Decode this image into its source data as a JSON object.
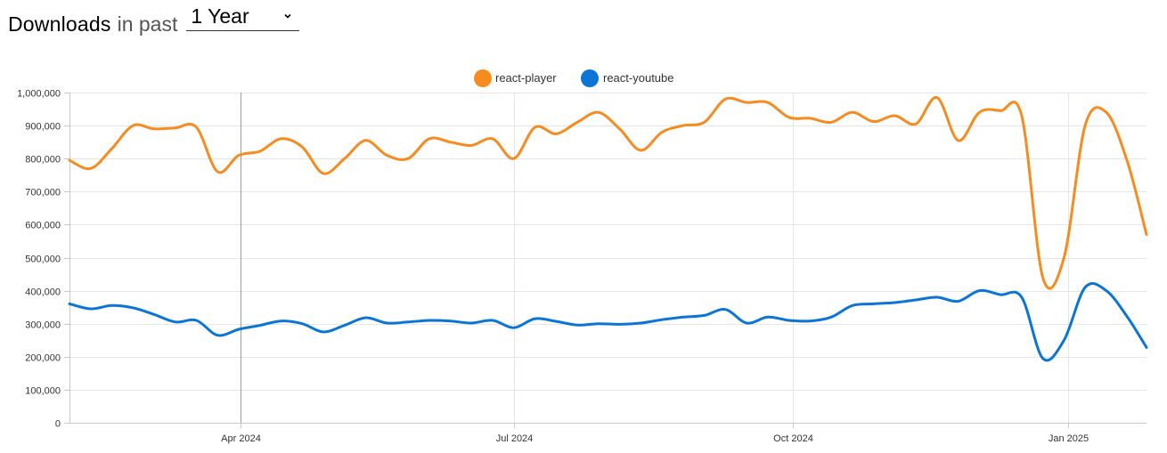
{
  "header": {
    "title": "Downloads",
    "subtitle": "in past",
    "period": "1 Year"
  },
  "chart_data": {
    "type": "line",
    "title": "",
    "xlabel": "",
    "ylabel": "",
    "ylim": [
      0,
      1000000
    ],
    "yticks": [
      0,
      100000,
      200000,
      300000,
      400000,
      500000,
      600000,
      700000,
      800000,
      900000,
      1000000
    ],
    "ytick_labels": [
      "0",
      "100,000",
      "200,000",
      "300,000",
      "400,000",
      "500,000",
      "600,000",
      "700,000",
      "800,000",
      "900,000",
      "1,000,000"
    ],
    "x_range_weeks": [
      0,
      50.9
    ],
    "xticks": [
      {
        "label": "Apr 2024",
        "week": 8.1
      },
      {
        "label": "Jul 2024",
        "week": 21.0
      },
      {
        "label": "Oct 2024",
        "week": 34.2
      },
      {
        "label": "Jan 2025",
        "week": 47.2
      }
    ],
    "x_weeks": [
      0,
      1,
      2,
      3,
      4,
      5,
      6,
      7,
      8,
      9,
      10,
      11,
      12,
      13,
      14,
      15,
      16,
      17,
      18,
      19,
      20,
      21,
      22,
      23,
      24,
      25,
      26,
      27,
      28,
      29,
      30,
      31,
      32,
      33,
      34,
      35,
      36,
      37,
      38,
      39,
      40,
      41,
      42,
      43,
      44,
      45,
      46,
      47,
      48,
      49,
      50,
      50.9
    ],
    "legend": "top-center",
    "colors": {
      "react-player": "#f68b1f",
      "react-youtube": "#0b75d6",
      "grid": "#e6e6e6",
      "axis": "#c8c8c8"
    },
    "series": [
      {
        "name": "react-player",
        "values": [
          795000,
          770000,
          830000,
          900000,
          890000,
          893000,
          895000,
          760000,
          810000,
          822000,
          860000,
          835000,
          755000,
          800000,
          855000,
          810000,
          800000,
          860000,
          850000,
          840000,
          860000,
          800000,
          895000,
          875000,
          910000,
          940000,
          890000,
          825000,
          880000,
          900000,
          910000,
          980000,
          970000,
          970000,
          925000,
          922000,
          910000,
          940000,
          912000,
          930000,
          905000,
          985000,
          855000,
          940000,
          945000,
          930000,
          440000,
          500000,
          900000,
          940000,
          790000,
          570000
        ]
      },
      {
        "name": "react-youtube",
        "values": [
          360000,
          345000,
          355000,
          348000,
          328000,
          305000,
          310000,
          265000,
          283000,
          295000,
          308000,
          300000,
          275000,
          295000,
          318000,
          302000,
          305000,
          310000,
          308000,
          302000,
          310000,
          288000,
          315000,
          307000,
          296000,
          300000,
          298000,
          302000,
          312000,
          320000,
          325000,
          343000,
          302000,
          320000,
          310000,
          308000,
          320000,
          355000,
          360000,
          364000,
          372000,
          380000,
          368000,
          400000,
          388000,
          380000,
          195000,
          250000,
          410000,
          400000,
          320000,
          228000
        ]
      }
    ]
  }
}
